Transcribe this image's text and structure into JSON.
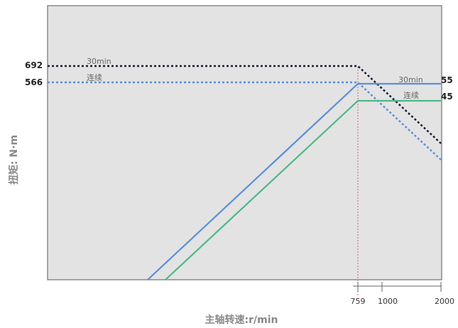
{
  "chart_data": {
    "type": "line",
    "xlabel": "主轴转速:r/min",
    "ylabel": "扭矩: N·m",
    "x_ticks": [
      "759",
      "1000",
      "2000"
    ],
    "y_ticks": [
      "692",
      "566"
    ],
    "right_labels": [
      "55",
      "45"
    ],
    "series": [
      {
        "label": "30min",
        "style": "dashed",
        "color": "#1a1a3a",
        "points": [
          [
            0,
            692
          ],
          [
            759,
            692
          ],
          [
            2000,
            380
          ]
        ]
      },
      {
        "label": "连续",
        "style": "dashed",
        "color": "#5b8fd8",
        "points": [
          [
            0,
            566
          ],
          [
            759,
            566
          ],
          [
            2000,
            265
          ]
        ]
      },
      {
        "label": "30min",
        "style": "solid",
        "color": "#5b8fd8",
        "points": [
          [
            -650,
            0
          ],
          [
            759,
            566
          ],
          [
            2000,
            566
          ]
        ]
      },
      {
        "label": "连续",
        "style": "solid",
        "color": "#4db888",
        "points": [
          [
            -565,
            0
          ],
          [
            759,
            466
          ],
          [
            2000,
            466
          ]
        ]
      }
    ],
    "marker_x": 759,
    "colors": {
      "plot_bg": "#e3e3e3",
      "plot_border": "#8a8a8a",
      "marker_line": "#e05c6a"
    }
  }
}
